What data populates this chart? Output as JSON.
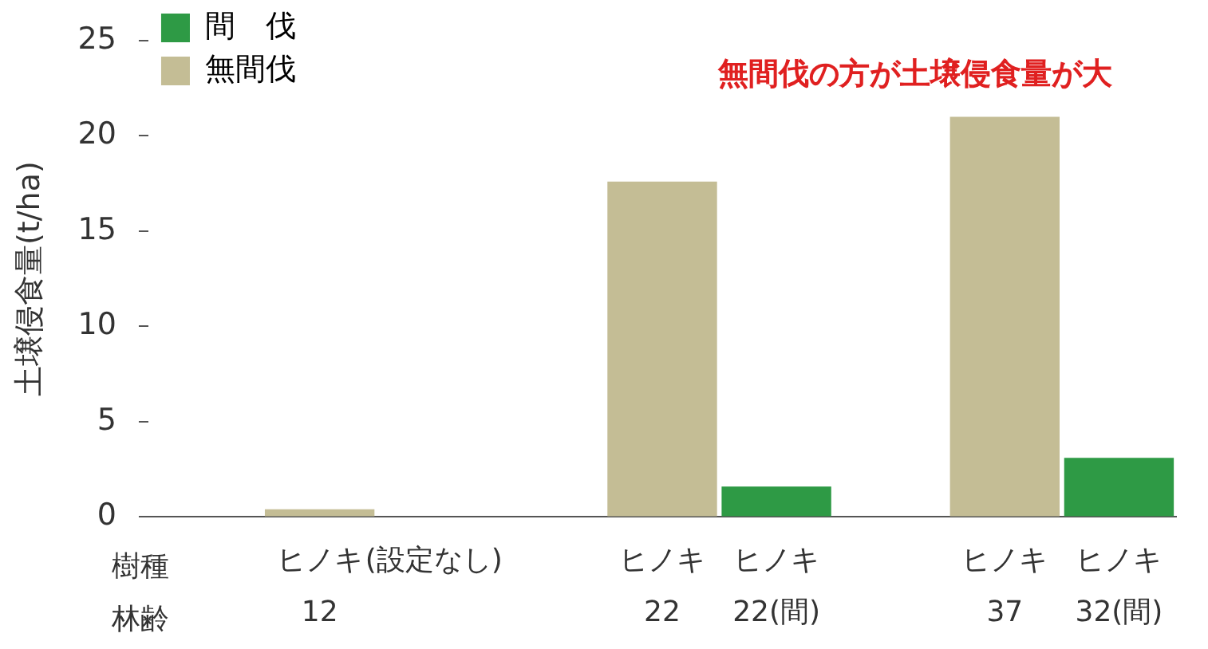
{
  "chart_data": {
    "type": "bar",
    "ylabel": "土壌侵食量(t/ha)",
    "categories": [
      null,
      "ヒノキ\n12",
      "(設定なし)",
      null,
      "ヒノキ\n22",
      "ヒノキ\n22(間)",
      null,
      "ヒノキ\n37",
      "ヒノキ\n32(間)"
    ],
    "series": [
      {
        "name": "間　伐",
        "color": "#2e9a45",
        "values": [
          null,
          null,
          null,
          null,
          null,
          1.6,
          null,
          null,
          3.1
        ]
      },
      {
        "name": "無間伐",
        "color": "#c4bd95",
        "values": [
          null,
          0.4,
          null,
          null,
          17.6,
          null,
          null,
          21.0,
          null
        ]
      }
    ],
    "stacked": true,
    "ylim": [
      0,
      25
    ],
    "yticks": [
      0,
      5,
      10,
      15,
      20,
      25
    ],
    "grid": false,
    "legend": "top left",
    "annotations": [
      "無間伐の方が土壌侵食量が大",
      "樹種",
      "林齢"
    ]
  }
}
